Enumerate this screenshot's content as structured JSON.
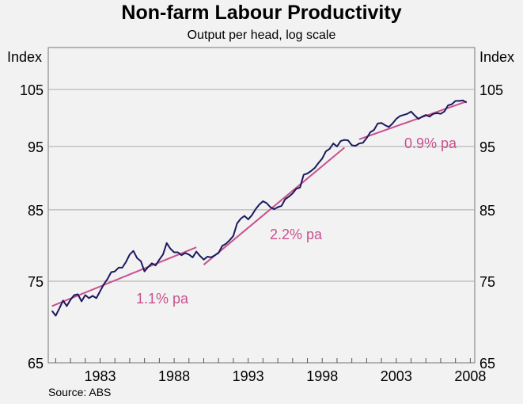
{
  "chart_data": {
    "type": "line",
    "title": "Non-farm Labour Productivity",
    "subtitle": "Output per head, log scale",
    "ylabel_left": "Index",
    "ylabel_right": "Index",
    "source": "Source: ABS",
    "y_scale": "log",
    "ylim": [
      65,
      113
    ],
    "y_ticks": [
      65,
      75,
      85,
      95,
      105
    ],
    "xlim": [
      1979.5,
      2008.3
    ],
    "x_ticks": [
      1983,
      1988,
      1993,
      1998,
      2003,
      2008
    ],
    "grid": true,
    "colors": {
      "series": "#1a1a5e",
      "trend": "#c9508e",
      "grid": "#aaaaaa",
      "background": "#f2f2f2"
    },
    "series": [
      {
        "x": [
          1979.75,
          1980.0,
          1980.25,
          1980.5,
          1980.75,
          1981.0,
          1981.25,
          1981.5,
          1981.75,
          1982.0,
          1982.25,
          1982.5,
          1982.75,
          1983.0,
          1983.25,
          1983.5,
          1983.75,
          1984.0,
          1984.25,
          1984.5,
          1984.75,
          1985.0,
          1985.25,
          1985.5,
          1985.75,
          1986.0,
          1986.25,
          1986.5,
          1986.75,
          1987.0,
          1987.25,
          1987.5,
          1987.75,
          1988.0,
          1988.25,
          1988.5,
          1988.75,
          1989.0,
          1989.25,
          1989.5,
          1989.75,
          1990.0,
          1990.25,
          1990.5,
          1990.75,
          1991.0,
          1991.25,
          1991.5,
          1991.75,
          1992.0,
          1992.25,
          1992.5,
          1992.75,
          1993.0,
          1993.25,
          1993.5,
          1993.75,
          1994.0,
          1994.25,
          1994.5,
          1994.75,
          1995.0,
          1995.25,
          1995.5,
          1995.75,
          1996.0,
          1996.25,
          1996.5,
          1996.75,
          1997.0,
          1997.25,
          1997.5,
          1997.75,
          1998.0,
          1998.25,
          1998.5,
          1998.75,
          1999.0,
          1999.25,
          1999.5,
          1999.75,
          2000.0,
          2000.25,
          2000.5,
          2000.75,
          2001.0,
          2001.25,
          2001.5,
          2001.75,
          2002.0,
          2002.25,
          2002.5,
          2002.75,
          2003.0,
          2003.25,
          2003.5,
          2003.75,
          2004.0,
          2004.25,
          2004.5,
          2004.75,
          2005.0,
          2005.25,
          2005.5,
          2005.75,
          2006.0,
          2006.25,
          2006.5,
          2006.75,
          2007.0,
          2007.25,
          2007.5,
          2007.75
        ],
        "values": [
          71.2,
          70.6,
          71.5,
          72.5,
          71.8,
          72.6,
          73.2,
          73.3,
          72.4,
          73.2,
          72.8,
          73.1,
          72.8,
          73.7,
          74.6,
          75.3,
          76.2,
          76.3,
          76.8,
          76.8,
          77.6,
          78.6,
          79.1,
          78.1,
          77.7,
          76.3,
          76.9,
          77.4,
          77.1,
          77.9,
          78.6,
          80.2,
          79.4,
          78.9,
          78.9,
          78.5,
          78.8,
          78.6,
          78.2,
          79.0,
          78.4,
          77.9,
          78.3,
          78.2,
          78.5,
          78.8,
          79.8,
          80.1,
          80.6,
          81.2,
          83.0,
          83.7,
          84.1,
          83.6,
          84.2,
          85.1,
          85.8,
          86.3,
          86.0,
          85.4,
          85.1,
          85.4,
          85.6,
          86.6,
          87.0,
          87.5,
          88.2,
          88.4,
          90.4,
          90.6,
          91.0,
          91.5,
          92.3,
          93.0,
          94.2,
          94.6,
          95.5,
          95.0,
          95.9,
          96.1,
          96.0,
          95.2,
          95.1,
          95.5,
          95.6,
          96.4,
          97.4,
          97.8,
          98.9,
          99.0,
          98.6,
          98.3,
          98.9,
          99.7,
          100.2,
          100.4,
          100.6,
          101.0,
          100.3,
          99.7,
          100.1,
          100.4,
          100.1,
          100.6,
          100.7,
          100.6,
          101.0,
          102.1,
          102.3,
          102.9,
          102.9,
          103.0,
          102.6
        ]
      }
    ],
    "trends": [
      {
        "label": "1.1% pa",
        "x": [
          1979.75,
          1989.5
        ],
        "y": [
          71.8,
          79.6
        ]
      },
      {
        "label": "2.2% pa",
        "x": [
          1990.0,
          1999.5
        ],
        "y": [
          77.2,
          94.8
        ]
      },
      {
        "label": "0.9% pa",
        "x": [
          2000.5,
          2007.75
        ],
        "y": [
          96.2,
          102.8
        ]
      }
    ]
  }
}
